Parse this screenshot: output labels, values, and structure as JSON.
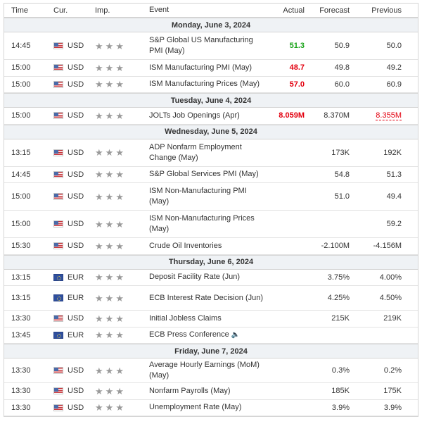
{
  "columns": {
    "time": "Time",
    "currency": "Cur.",
    "importance": "Imp.",
    "event": "Event",
    "actual": "Actual",
    "forecast": "Forecast",
    "previous": "Previous"
  },
  "star_glyph": "★",
  "speaker_glyph": "🔈",
  "colors": {
    "better": "#19a319",
    "worse": "#e3000f",
    "day_bg": "#eff2f5"
  },
  "days": [
    {
      "label": "Monday, June 3, 2024",
      "events": [
        {
          "time": "14:45",
          "currency": "USD",
          "flag": "usd",
          "event": "S&P Global US Manufacturing PMI (May)",
          "actual": "51.3",
          "actual_color": "green",
          "forecast": "50.9",
          "previous": "50.0",
          "lines": 2
        },
        {
          "time": "15:00",
          "currency": "USD",
          "flag": "usd",
          "event": "ISM Manufacturing PMI (May)",
          "actual": "48.7",
          "actual_color": "red",
          "forecast": "49.8",
          "previous": "49.2",
          "lines": 1
        },
        {
          "time": "15:00",
          "currency": "USD",
          "flag": "usd",
          "event": "ISM Manufacturing Prices (May)",
          "actual": "57.0",
          "actual_color": "red",
          "forecast": "60.0",
          "previous": "60.9",
          "lines": 1
        }
      ]
    },
    {
      "label": "Tuesday, June 4, 2024",
      "events": [
        {
          "time": "15:00",
          "currency": "USD",
          "flag": "usd",
          "event": "JOLTs Job Openings (Apr)",
          "actual": "8.059M",
          "actual_color": "red",
          "forecast": "8.370M",
          "previous": "8.355M",
          "previous_revised": true,
          "lines": 1
        }
      ]
    },
    {
      "label": "Wednesday, June 5, 2024",
      "events": [
        {
          "time": "13:15",
          "currency": "USD",
          "flag": "usd",
          "event": "ADP Nonfarm Employment Change (May)",
          "actual": "",
          "forecast": "173K",
          "previous": "192K",
          "lines": 2
        },
        {
          "time": "14:45",
          "currency": "USD",
          "flag": "usd",
          "event": "S&P Global Services PMI (May)",
          "actual": "",
          "forecast": "54.8",
          "previous": "51.3",
          "lines": 1
        },
        {
          "time": "15:00",
          "currency": "USD",
          "flag": "usd",
          "event": "ISM Non-Manufacturing PMI (May)",
          "actual": "",
          "forecast": "51.0",
          "previous": "49.4",
          "lines": 2
        },
        {
          "time": "15:00",
          "currency": "USD",
          "flag": "usd",
          "event": "ISM Non-Manufacturing Prices (May)",
          "actual": "",
          "forecast": "",
          "previous": "59.2",
          "lines": 2
        },
        {
          "time": "15:30",
          "currency": "USD",
          "flag": "usd",
          "event": "Crude Oil Inventories",
          "actual": "",
          "forecast": "-2.100M",
          "previous": "-4.156M",
          "lines": 1
        }
      ]
    },
    {
      "label": "Thursday, June 6, 2024",
      "events": [
        {
          "time": "13:15",
          "currency": "EUR",
          "flag": "eur",
          "event": "Deposit Facility Rate (Jun)",
          "actual": "",
          "forecast": "3.75%",
          "previous": "4.00%",
          "lines": 1
        },
        {
          "time": "13:15",
          "currency": "EUR",
          "flag": "eur",
          "event": "ECB Interest Rate Decision (Jun)",
          "actual": "",
          "forecast": "4.25%",
          "previous": "4.50%",
          "lines": 2
        },
        {
          "time": "13:30",
          "currency": "USD",
          "flag": "usd",
          "event": "Initial Jobless Claims",
          "actual": "",
          "forecast": "215K",
          "previous": "219K",
          "lines": 1
        },
        {
          "time": "13:45",
          "currency": "EUR",
          "flag": "eur",
          "event": "ECB Press Conference",
          "actual": "",
          "forecast": "",
          "previous": "",
          "speaker": true,
          "lines": 1
        }
      ]
    },
    {
      "label": "Friday, June 7, 2024",
      "events": [
        {
          "time": "13:30",
          "currency": "USD",
          "flag": "usd",
          "event": "Average Hourly Earnings (MoM) (May)",
          "actual": "",
          "forecast": "0.3%",
          "previous": "0.2%",
          "lines": 2
        },
        {
          "time": "13:30",
          "currency": "USD",
          "flag": "usd",
          "event": "Nonfarm Payrolls (May)",
          "actual": "",
          "forecast": "185K",
          "previous": "175K",
          "lines": 1
        },
        {
          "time": "13:30",
          "currency": "USD",
          "flag": "usd",
          "event": "Unemployment Rate (May)",
          "actual": "",
          "forecast": "3.9%",
          "previous": "3.9%",
          "lines": 1
        }
      ]
    }
  ]
}
